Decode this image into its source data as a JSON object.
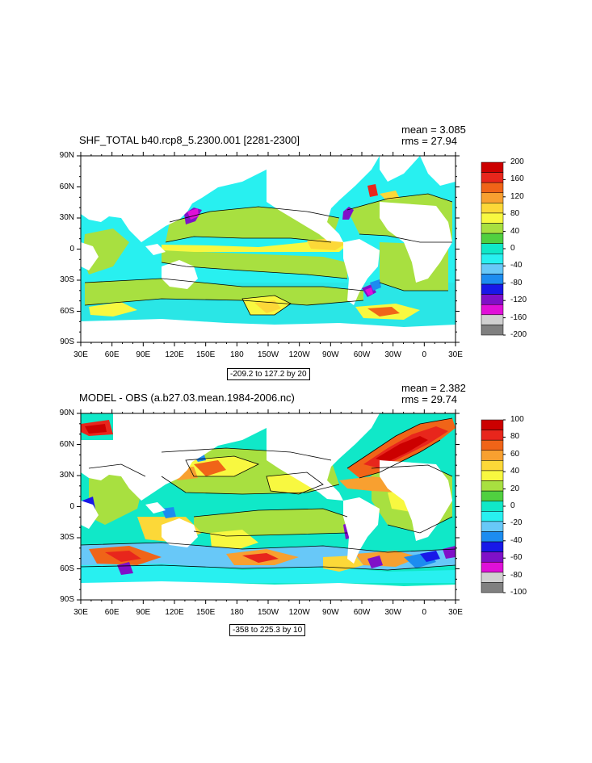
{
  "panels": [
    {
      "title": "SHF_TOTAL b40.rcp8_5.2300.001 [2281-2300]",
      "mean": "mean = 3.085",
      "rms": "rms = 27.94",
      "range": "-209.2 to 127.2 by 20",
      "colorbar_labels": [
        "200",
        "160",
        "120",
        "80",
        "40",
        "0",
        "-40",
        "-80",
        "-120",
        "-160",
        "-200"
      ]
    },
    {
      "title": "MODEL - OBS (a.b27.03.mean.1984-2006.nc)",
      "mean": "mean = 2.382",
      "rms": "rms = 29.74",
      "range": "-358 to 225.3 by 10",
      "colorbar_labels": [
        "100",
        "80",
        "60",
        "40",
        "20",
        "0",
        "-20",
        "-40",
        "-60",
        "-80",
        "-100"
      ]
    }
  ],
  "lat_labels": [
    "90N",
    "60N",
    "30N",
    "0",
    "30S",
    "60S",
    "90S"
  ],
  "lon_labels": [
    "30E",
    "60E",
    "90E",
    "120E",
    "150E",
    "180",
    "150W",
    "120W",
    "90W",
    "60W",
    "30W",
    "0",
    "30E"
  ],
  "colors": {
    "colorbar": [
      "#cc0000",
      "#e8261c",
      "#f06418",
      "#f8a030",
      "#fcd838",
      "#f8f840",
      "#a8e040",
      "#50d040",
      "#10e8c8",
      "#28f0f0",
      "#68c8f8",
      "#1c8cf0",
      "#1818e8",
      "#8010c8",
      "#e010d8",
      "#d0d0d0",
      "#808080"
    ],
    "land": "#ffffff"
  }
}
